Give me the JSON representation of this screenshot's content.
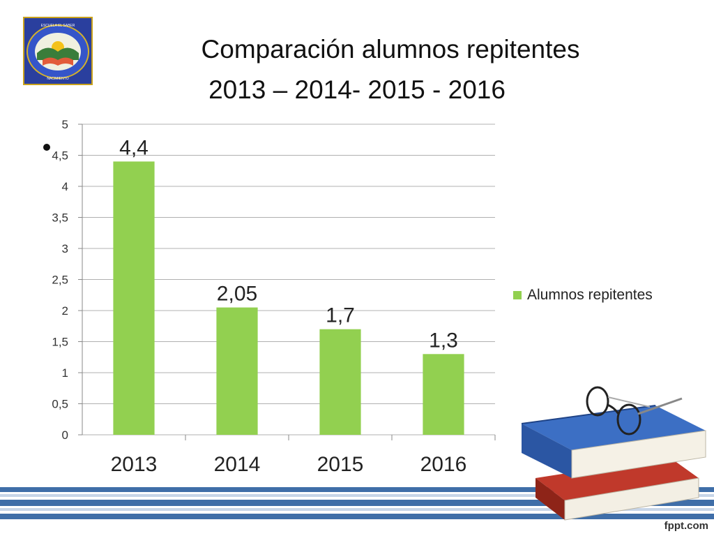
{
  "slide": {
    "title_line1": "Comparación alumnos repitentes",
    "title_line2": "2013 – 2014- 2015 - 2016",
    "logo_text_top": "ESCUELA EL SABER",
    "logo_text_bottom": "NACIMIENTO",
    "watermark": "fppt.com"
  },
  "colors": {
    "bar": "#92d050",
    "grid": "#b0b0b0",
    "stripe_blue": "#3f6ea8",
    "stripe_light": "#c7d5e8"
  },
  "chart_data": {
    "type": "bar",
    "categories": [
      "2013",
      "2014",
      "2015",
      "2016"
    ],
    "series": [
      {
        "name": "Alumnos repitentes",
        "values": [
          4.4,
          2.05,
          1.7,
          1.3
        ]
      }
    ],
    "data_labels": [
      "4,4",
      "2,05",
      "1,7",
      "1,3"
    ],
    "y_ticks": [
      0,
      0.5,
      1,
      1.5,
      2,
      2.5,
      3,
      3.5,
      4,
      4.5,
      5
    ],
    "y_tick_labels": [
      "0",
      "0,5",
      "1",
      "1,5",
      "2",
      "2,5",
      "3",
      "3,5",
      "4",
      "4,5",
      "5"
    ],
    "ylim": [
      0,
      5
    ],
    "grid": true,
    "legend_position": "right"
  }
}
